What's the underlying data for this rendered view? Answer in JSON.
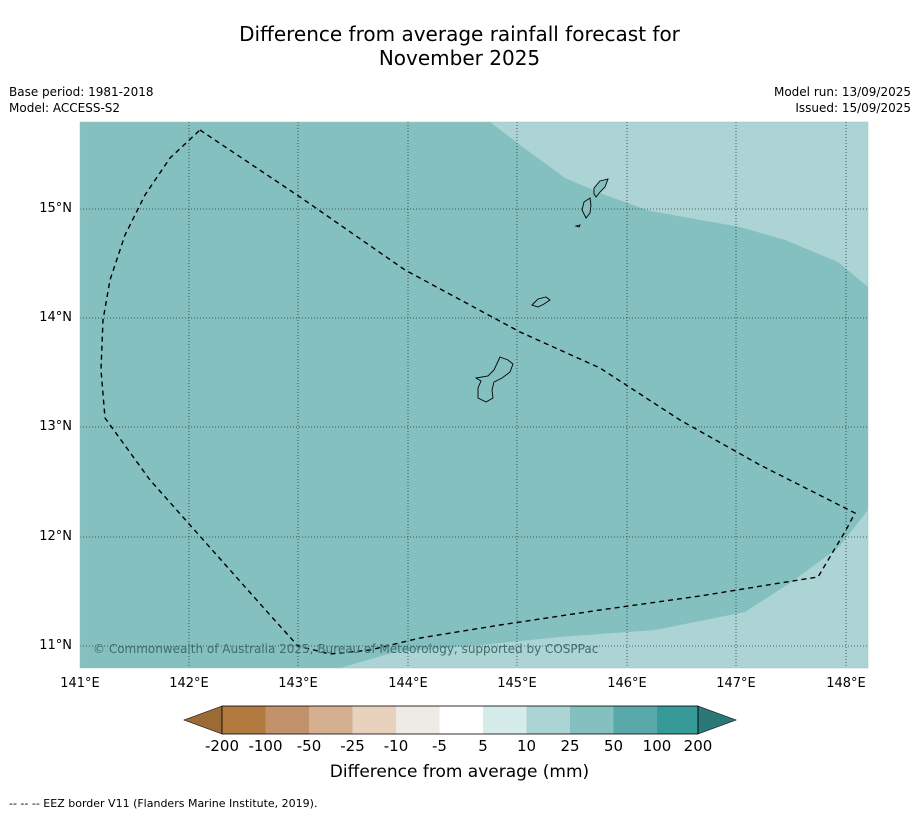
{
  "title_line1": "Difference from average rainfall forecast for",
  "title_line2": "November 2025",
  "base_period": "Base period: 1981-2018",
  "model": "Model: ACCESS-S2",
  "model_run": "Model run: 13/09/2025",
  "issued": "Issued: 15/09/2025",
  "copyright": "© Commonwealth of Australia 2025, Bureau of Meteorology, supported by COSPPac",
  "lat_labels": [
    "15°N",
    "14°N",
    "13°N",
    "12°N",
    "11°N"
  ],
  "lon_labels": [
    "141°E",
    "142°E",
    "143°E",
    "144°E",
    "145°E",
    "146°E",
    "147°E",
    "148°E"
  ],
  "colorbar": {
    "title": "Difference from average (mm)",
    "ticks": [
      "-200",
      "-100",
      "-50",
      "-25",
      "-10",
      "-5",
      "5",
      "10",
      "25",
      "50",
      "100",
      "200"
    ],
    "colors": [
      "#9c6a35",
      "#b37a40",
      "#c19169",
      "#d4b090",
      "#e8d2be",
      "#eeebe7",
      "#ffffff",
      "#d5ecea",
      "#acd4d4",
      "#83c0bf",
      "#5aa9aa",
      "#369a99",
      "#2a7878"
    ]
  },
  "map_colors": {
    "band_25_50": "#acd4d4",
    "band_50_100": "#83c0bf"
  },
  "footnote": "--  --  -- EEZ border V11 (Flanders Marine Institute, 2019)."
}
